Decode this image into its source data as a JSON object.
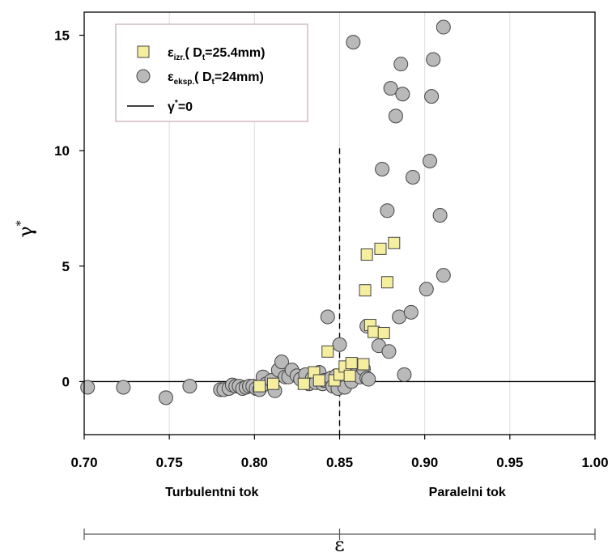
{
  "chart_data": {
    "type": "scatter",
    "xlabel": "ε",
    "ylabel": "γ",
    "ylabel_superscript": "*",
    "xlim": [
      0.7,
      1.0
    ],
    "ylim": [
      -2.3,
      16.0
    ],
    "x_ticks": [
      "0.70",
      "0.75",
      "0.80",
      "0.85",
      "0.90",
      "0.95",
      "1.00"
    ],
    "y_ticks": [
      "0",
      "5",
      "10",
      "15"
    ],
    "grid": "vertical",
    "legend_position": "top-left",
    "threshold_x": 0.85,
    "reference_line_y": 0,
    "regions": [
      {
        "label": "Turbulentni tok",
        "from": 0.7,
        "to": 0.85
      },
      {
        "label": "Paralelni tok",
        "from": 0.85,
        "to": 1.0
      }
    ],
    "legend": [
      {
        "main": "ε",
        "sub": "izr.",
        "tail": "( D",
        "tsub": "t",
        "rest": "=25.4mm)",
        "marker": "square",
        "color": "#f5ee9e"
      },
      {
        "main": "ε",
        "sub": "eksp.",
        "tail": "( D",
        "tsub": "t",
        "rest": "=24mm)",
        "marker": "circle",
        "color": "#b9b9b9"
      },
      {
        "main": "γ",
        "sup": "*",
        "rest": "=0",
        "marker": "line",
        "color": "#000000"
      }
    ],
    "series": [
      {
        "name": "ε izr.( Dt=25.4mm)",
        "marker": "square",
        "color": "#f5ee9e",
        "points": [
          [
            0.803,
            -0.2
          ],
          [
            0.811,
            -0.1
          ],
          [
            0.829,
            -0.1
          ],
          [
            0.835,
            0.4
          ],
          [
            0.838,
            0.05
          ],
          [
            0.843,
            1.3
          ],
          [
            0.847,
            0.05
          ],
          [
            0.85,
            0.3
          ],
          [
            0.853,
            0.65
          ],
          [
            0.856,
            0.25
          ],
          [
            0.857,
            0.8
          ],
          [
            0.864,
            0.75
          ],
          [
            0.865,
            3.95
          ],
          [
            0.866,
            5.5
          ],
          [
            0.868,
            2.45
          ],
          [
            0.87,
            2.15
          ],
          [
            0.874,
            5.75
          ],
          [
            0.876,
            2.1
          ],
          [
            0.878,
            4.3
          ],
          [
            0.882,
            6.0
          ]
        ]
      },
      {
        "name": "ε eksp.( Dt=24mm)",
        "marker": "circle",
        "color": "#b9b9b9",
        "points": [
          [
            0.702,
            -0.25
          ],
          [
            0.723,
            -0.25
          ],
          [
            0.748,
            -0.7
          ],
          [
            0.762,
            -0.2
          ],
          [
            0.78,
            -0.35
          ],
          [
            0.782,
            -0.35
          ],
          [
            0.785,
            -0.3
          ],
          [
            0.787,
            -0.15
          ],
          [
            0.789,
            -0.2
          ],
          [
            0.791,
            -0.2
          ],
          [
            0.793,
            -0.3
          ],
          [
            0.795,
            -0.25
          ],
          [
            0.797,
            -0.2
          ],
          [
            0.799,
            -0.2
          ],
          [
            0.801,
            -0.3
          ],
          [
            0.803,
            -0.35
          ],
          [
            0.805,
            0.2
          ],
          [
            0.807,
            -0.1
          ],
          [
            0.81,
            0.05
          ],
          [
            0.812,
            -0.4
          ],
          [
            0.814,
            0.5
          ],
          [
            0.816,
            0.85
          ],
          [
            0.818,
            0.2
          ],
          [
            0.82,
            0.2
          ],
          [
            0.822,
            0.5
          ],
          [
            0.825,
            0.25
          ],
          [
            0.827,
            0.1
          ],
          [
            0.83,
            0.3
          ],
          [
            0.832,
            -0.1
          ],
          [
            0.834,
            0.15
          ],
          [
            0.836,
            -0.05
          ],
          [
            0.838,
            0.4
          ],
          [
            0.84,
            -0.1
          ],
          [
            0.841,
            0.05
          ],
          [
            0.843,
            2.8
          ],
          [
            0.845,
            0.15
          ],
          [
            0.846,
            -0.2
          ],
          [
            0.848,
            0.25
          ],
          [
            0.849,
            -0.3
          ],
          [
            0.85,
            1.6
          ],
          [
            0.851,
            0.05
          ],
          [
            0.853,
            -0.25
          ],
          [
            0.855,
            0.35
          ],
          [
            0.857,
            0.0
          ],
          [
            0.858,
            14.7
          ],
          [
            0.859,
            0.45
          ],
          [
            0.861,
            0.5
          ],
          [
            0.862,
            0.2
          ],
          [
            0.864,
            0.55
          ],
          [
            0.866,
            0.15
          ],
          [
            0.867,
            0.1
          ],
          [
            0.866,
            2.4
          ],
          [
            0.873,
            1.55
          ],
          [
            0.875,
            9.2
          ],
          [
            0.878,
            7.4
          ],
          [
            0.879,
            1.3
          ],
          [
            0.88,
            12.7
          ],
          [
            0.883,
            11.5
          ],
          [
            0.885,
            2.8
          ],
          [
            0.886,
            13.75
          ],
          [
            0.887,
            12.45
          ],
          [
            0.888,
            0.3
          ],
          [
            0.892,
            3.0
          ],
          [
            0.893,
            8.85
          ],
          [
            0.901,
            4.0
          ],
          [
            0.903,
            9.55
          ],
          [
            0.904,
            12.35
          ],
          [
            0.905,
            13.95
          ],
          [
            0.909,
            7.2
          ],
          [
            0.911,
            15.35
          ],
          [
            0.911,
            4.6
          ]
        ]
      }
    ]
  }
}
